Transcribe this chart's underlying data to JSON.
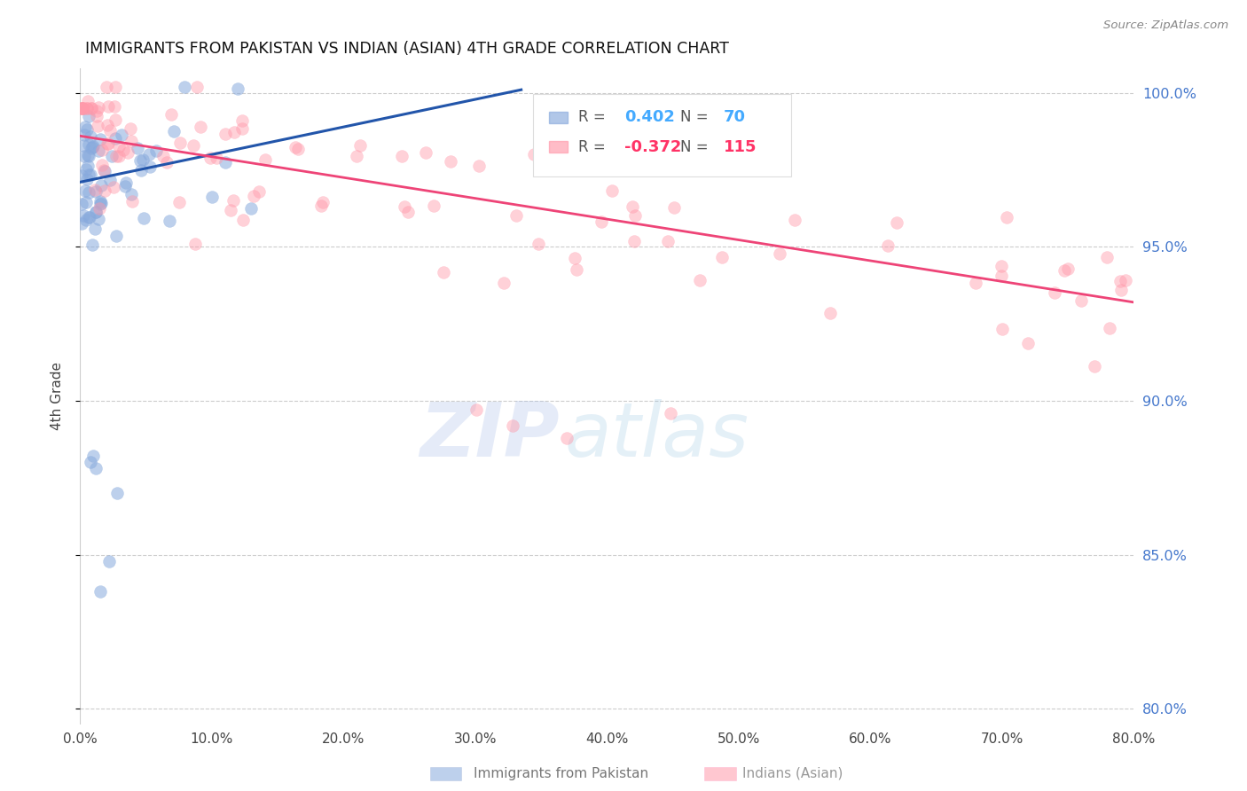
{
  "title": "IMMIGRANTS FROM PAKISTAN VS INDIAN (ASIAN) 4TH GRADE CORRELATION CHART",
  "source": "Source: ZipAtlas.com",
  "xlabel_blue": "Immigrants from Pakistan",
  "xlabel_pink": "Indians (Asian)",
  "ylabel": "4th Grade",
  "watermark_zip": "ZIP",
  "watermark_atlas": "atlas",
  "xlim": [
    0.0,
    0.8
  ],
  "ylim": [
    0.795,
    1.008
  ],
  "yticks": [
    0.8,
    0.85,
    0.9,
    0.95,
    1.0
  ],
  "ytick_labels": [
    "80.0%",
    "85.0%",
    "90.0%",
    "95.0%",
    "100.0%"
  ],
  "xticks": [
    0.0,
    0.1,
    0.2,
    0.3,
    0.4,
    0.5,
    0.6,
    0.7,
    0.8
  ],
  "xtick_labels": [
    "0.0%",
    "10.0%",
    "20.0%",
    "30.0%",
    "40.0%",
    "50.0%",
    "60.0%",
    "70.0%",
    "80.0%"
  ],
  "blue_R": 0.402,
  "blue_N": 70,
  "pink_R": -0.372,
  "pink_N": 115,
  "blue_color": "#88AADD",
  "pink_color": "#FF99AA",
  "blue_line_color": "#2255AA",
  "pink_line_color": "#EE4477",
  "title_fontsize": 12.5,
  "right_axis_color": "#4477CC",
  "legend_R_color_blue": "#44AAFF",
  "legend_R_color_pink": "#FF3366",
  "legend_label_color": "#555555",
  "blue_trend_x0": 0.0,
  "blue_trend_x1": 0.335,
  "blue_trend_y0": 0.971,
  "blue_trend_y1": 1.001,
  "pink_trend_x0": 0.0,
  "pink_trend_x1": 0.8,
  "pink_trend_y0": 0.986,
  "pink_trend_y1": 0.932
}
